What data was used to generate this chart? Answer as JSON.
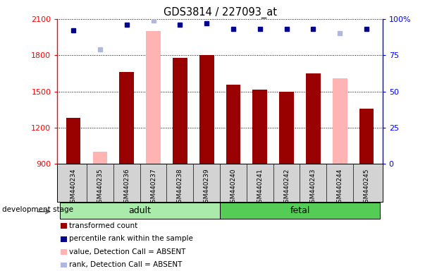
{
  "title": "GDS3814 / 227093_at",
  "samples": [
    "GSM440234",
    "GSM440235",
    "GSM440236",
    "GSM440237",
    "GSM440238",
    "GSM440239",
    "GSM440240",
    "GSM440241",
    "GSM440242",
    "GSM440243",
    "GSM440244",
    "GSM440245"
  ],
  "transformed_count": [
    1280,
    null,
    1660,
    null,
    1780,
    1800,
    1555,
    1515,
    1500,
    1650,
    null,
    1360
  ],
  "absent_value": [
    null,
    1000,
    null,
    2000,
    null,
    null,
    null,
    null,
    null,
    null,
    1610,
    null
  ],
  "percentile_rank": [
    92,
    null,
    96,
    null,
    96,
    97,
    93,
    93,
    93,
    93,
    null,
    93
  ],
  "absent_rank": [
    null,
    79,
    null,
    99,
    null,
    null,
    null,
    null,
    null,
    null,
    90,
    null
  ],
  "ylim_left": [
    900,
    2100
  ],
  "ylim_right": [
    0,
    100
  ],
  "yticks_left": [
    900,
    1200,
    1500,
    1800,
    2100
  ],
  "yticks_right": [
    0,
    25,
    50,
    75,
    100
  ],
  "adult_label": "adult",
  "fetal_label": "fetal",
  "stage_label": "development stage",
  "bar_color_present": "#990000",
  "bar_color_absent": "#ffb3b3",
  "dot_color_present": "#00008B",
  "dot_color_absent": "#b0b8e0",
  "adult_bg": "#aaeaaa",
  "fetal_bg": "#55cc55",
  "sample_bg": "#d3d3d3",
  "legend_items": [
    {
      "label": "transformed count",
      "color": "#990000"
    },
    {
      "label": "percentile rank within the sample",
      "color": "#00008B"
    },
    {
      "label": "value, Detection Call = ABSENT",
      "color": "#ffb3b3"
    },
    {
      "label": "rank, Detection Call = ABSENT",
      "color": "#b0b8e0"
    }
  ],
  "fig_width": 6.03,
  "fig_height": 3.84,
  "dpi": 100
}
